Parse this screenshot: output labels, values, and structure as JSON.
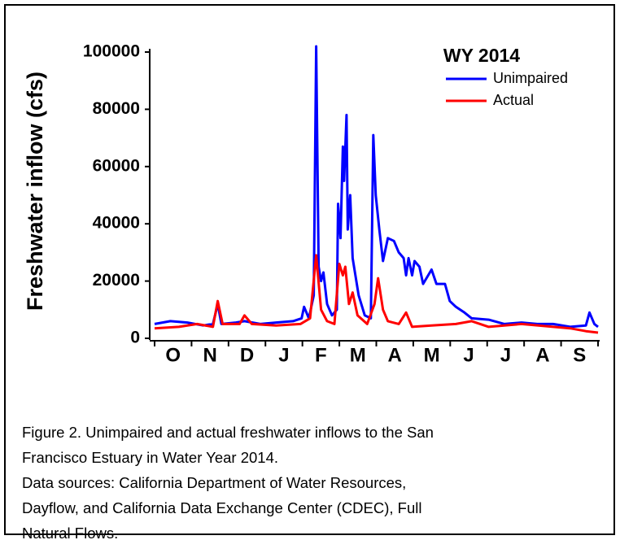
{
  "chart_data": {
    "type": "line",
    "ylabel": "Freshwater inflow (cfs)",
    "legend_title": "WY 2014",
    "legend": "upper right",
    "categories": [
      "O",
      "N",
      "D",
      "J",
      "F",
      "M",
      "A",
      "M",
      "J",
      "J",
      "A",
      "S"
    ],
    "xlim": [
      0,
      365
    ],
    "ylim": [
      0,
      100000
    ],
    "yticks": [
      0,
      20000,
      40000,
      60000,
      80000,
      100000
    ],
    "series": [
      {
        "name": "Unimpaired",
        "color": "#0000ff",
        "x": [
          0,
          13,
          27,
          40,
          48,
          52,
          55,
          67,
          74,
          87,
          100,
          114,
          121,
          123,
          127,
          131,
          133,
          135,
          137,
          139,
          142,
          146,
          150,
          151,
          153,
          155,
          156,
          158,
          159,
          161,
          163,
          168,
          173,
          178,
          180,
          182,
          185,
          188,
          192,
          197,
          201,
          205,
          207,
          209,
          212,
          214,
          218,
          221,
          228,
          232,
          239,
          243,
          248,
          255,
          261,
          275,
          288,
          302,
          315,
          328,
          342,
          355,
          358,
          362,
          365
        ],
        "values": [
          5000,
          6000,
          5500,
          4500,
          5000,
          12000,
          5000,
          5500,
          6000,
          5000,
          5500,
          6000,
          7000,
          11000,
          7000,
          15000,
          102000,
          25000,
          20000,
          23000,
          12000,
          8000,
          10000,
          47000,
          35000,
          67000,
          55000,
          78000,
          38000,
          50000,
          28000,
          15000,
          8000,
          7000,
          71000,
          50000,
          38000,
          27000,
          35000,
          34000,
          30000,
          28000,
          22000,
          28000,
          22000,
          27000,
          25000,
          19000,
          24000,
          19000,
          19000,
          13000,
          11000,
          9000,
          7000,
          6500,
          5000,
          5500,
          5000,
          5000,
          4000,
          4500,
          9000,
          5000,
          4000
        ]
      },
      {
        "name": "Actual",
        "color": "#ff0000",
        "x": [
          0,
          20,
          35,
          48,
          52,
          56,
          70,
          74,
          80,
          100,
          120,
          128,
          133,
          137,
          142,
          148,
          152,
          155,
          157,
          160,
          163,
          167,
          175,
          181,
          184,
          188,
          192,
          201,
          207,
          212,
          228,
          248,
          261,
          275,
          302,
          342,
          355,
          365
        ],
        "values": [
          3500,
          4000,
          5000,
          4000,
          13000,
          5000,
          5000,
          8000,
          5000,
          4500,
          5000,
          7000,
          29000,
          10000,
          6000,
          5000,
          26000,
          22000,
          25000,
          12000,
          16000,
          8000,
          5000,
          12000,
          21000,
          10000,
          6000,
          5000,
          9000,
          4000,
          4500,
          5000,
          6000,
          4000,
          5000,
          3500,
          2500,
          2000
        ]
      }
    ]
  },
  "caption": [
    "Figure 2. Unimpaired and actual freshwater inflows to the San",
    "Francisco Estuary in Water Year 2014.",
    "Data sources: California Department of Water Resources,",
    "Dayflow, and California Data Exchange Center (CDEC), Full",
    "Natural Flows."
  ]
}
